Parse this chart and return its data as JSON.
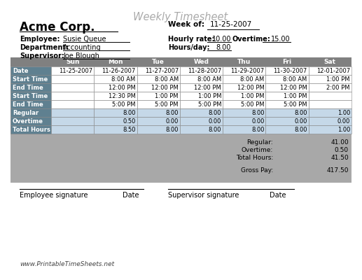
{
  "title": "Weekly Timesheet",
  "company": "Acme Corp.",
  "week_of_label": "Week of:",
  "week_of_value": "11-25-2007",
  "employee_label": "Employee:",
  "employee_value": "Susie Queue",
  "department_label": "Department:",
  "department_value": "Accounting",
  "supervisor_label": "Supervisor:",
  "supervisor_value": "Joe Blough",
  "hourly_rate_label": "Hourly rate:",
  "hourly_rate_value": "10.00",
  "overtime_label": "Overtime:",
  "overtime_value": "15.00",
  "hours_day_label": "Hours/day:",
  "hours_day_value": "8.00",
  "col_headers": [
    "Sun",
    "Mon",
    "Tue",
    "Wed",
    "Thu",
    "Fri",
    "Sat"
  ],
  "row_headers": [
    "Date",
    "Start Time",
    "End Time",
    "Start Time",
    "End Time",
    "Regular",
    "Overtime",
    "Total Hours"
  ],
  "dates": [
    "11-25-2007",
    "11-26-2007",
    "11-27-2007",
    "11-28-2007",
    "11-29-2007",
    "11-30-2007",
    "12-01-2007"
  ],
  "start_time1": [
    "",
    "8:00 AM",
    "8:00 AM",
    "8:00 AM",
    "8:00 AM",
    "8:00 AM",
    "1:00 PM"
  ],
  "end_time1": [
    "",
    "12:00 PM",
    "12:00 PM",
    "12:00 PM",
    "12:00 PM",
    "12:00 PM",
    "2:00 PM"
  ],
  "start_time2": [
    "",
    "12:30 PM",
    "1:00 PM",
    "1:00 PM",
    "1:00 PM",
    "1:00 PM",
    ""
  ],
  "end_time2": [
    "",
    "5:00 PM",
    "5:00 PM",
    "5:00 PM",
    "5:00 PM",
    "5:00 PM",
    ""
  ],
  "regular": [
    "",
    "8.00",
    "8.00",
    "8.00",
    "8.00",
    "8.00",
    "1.00"
  ],
  "overtime_row": [
    "",
    "0.50",
    "0.00",
    "0.00",
    "0.00",
    "0.00",
    "0.00"
  ],
  "total_hours": [
    "",
    "8.50",
    "8.00",
    "8.00",
    "8.00",
    "8.00",
    "1.00"
  ],
  "summary_regular": "41.00",
  "summary_overtime": "0.50",
  "summary_total_hours": "41.50",
  "summary_gross_pay": "417.50",
  "header_bg": "#808080",
  "header_fg": "#ffffff",
  "row_label_bg_dark": "#5f8090",
  "row_label_bg_light": "#8aaec0",
  "row_label_fg": "#ffffff",
  "cell_bg_white": "#ffffff",
  "cell_bg_blue": "#c5d8e8",
  "grid_bg": "#a8a8a8",
  "border_color": "#888888",
  "website": "www.PrintableTimeSheets.net",
  "emp_sig_label": "Employee signature",
  "date_label1": "Date",
  "sup_sig_label": "Supervisor signature",
  "date_label2": "Date",
  "title_color": "#aaaaaa",
  "body_font": "sans-serif",
  "mono_font": "monospace"
}
